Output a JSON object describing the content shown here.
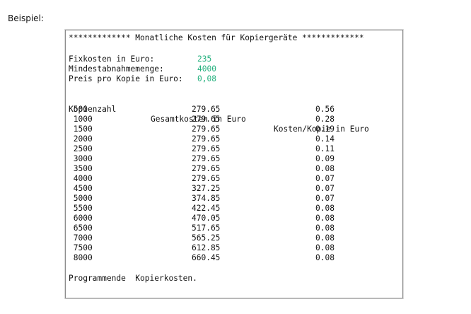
{
  "caption": "Beispiel:",
  "terminal": {
    "title": "************* Monatliche Kosten für Kopiergeräte *************",
    "params": [
      {
        "label": "Fixkosten in Euro:",
        "value": "235"
      },
      {
        "label": "Mindestabnahmemenge:",
        "value": "4000"
      },
      {
        "label": "Preis pro Kopie in Euro:",
        "value": "0,08"
      }
    ],
    "table": {
      "headers": [
        "Kopienzahl",
        "Gesamtkosten in Euro",
        "Kosten/Kopie in Euro"
      ],
      "rows": [
        [
          " 500",
          "279.65",
          "0.56"
        ],
        [
          " 1000",
          "279.65",
          "0.28"
        ],
        [
          " 1500",
          "279.65",
          "0.19"
        ],
        [
          " 2000",
          "279.65",
          "0.14"
        ],
        [
          " 2500",
          "279.65",
          "0.11"
        ],
        [
          " 3000",
          "279.65",
          "0.09"
        ],
        [
          " 3500",
          "279.65",
          "0.08"
        ],
        [
          " 4000",
          "279.65",
          "0.07"
        ],
        [
          " 4500",
          "327.25",
          "0.07"
        ],
        [
          " 5000",
          "374.85",
          "0.07"
        ],
        [
          " 5500",
          "422.45",
          "0.08"
        ],
        [
          " 6000",
          "470.05",
          "0.08"
        ],
        [
          " 6500",
          "517.65",
          "0.08"
        ],
        [
          " 7000",
          "565.25",
          "0.08"
        ],
        [
          " 7500",
          "612.85",
          "0.08"
        ],
        [
          " 8000",
          "660.45",
          "0.08"
        ]
      ]
    },
    "footer": "Programmende  Kopierkosten."
  }
}
